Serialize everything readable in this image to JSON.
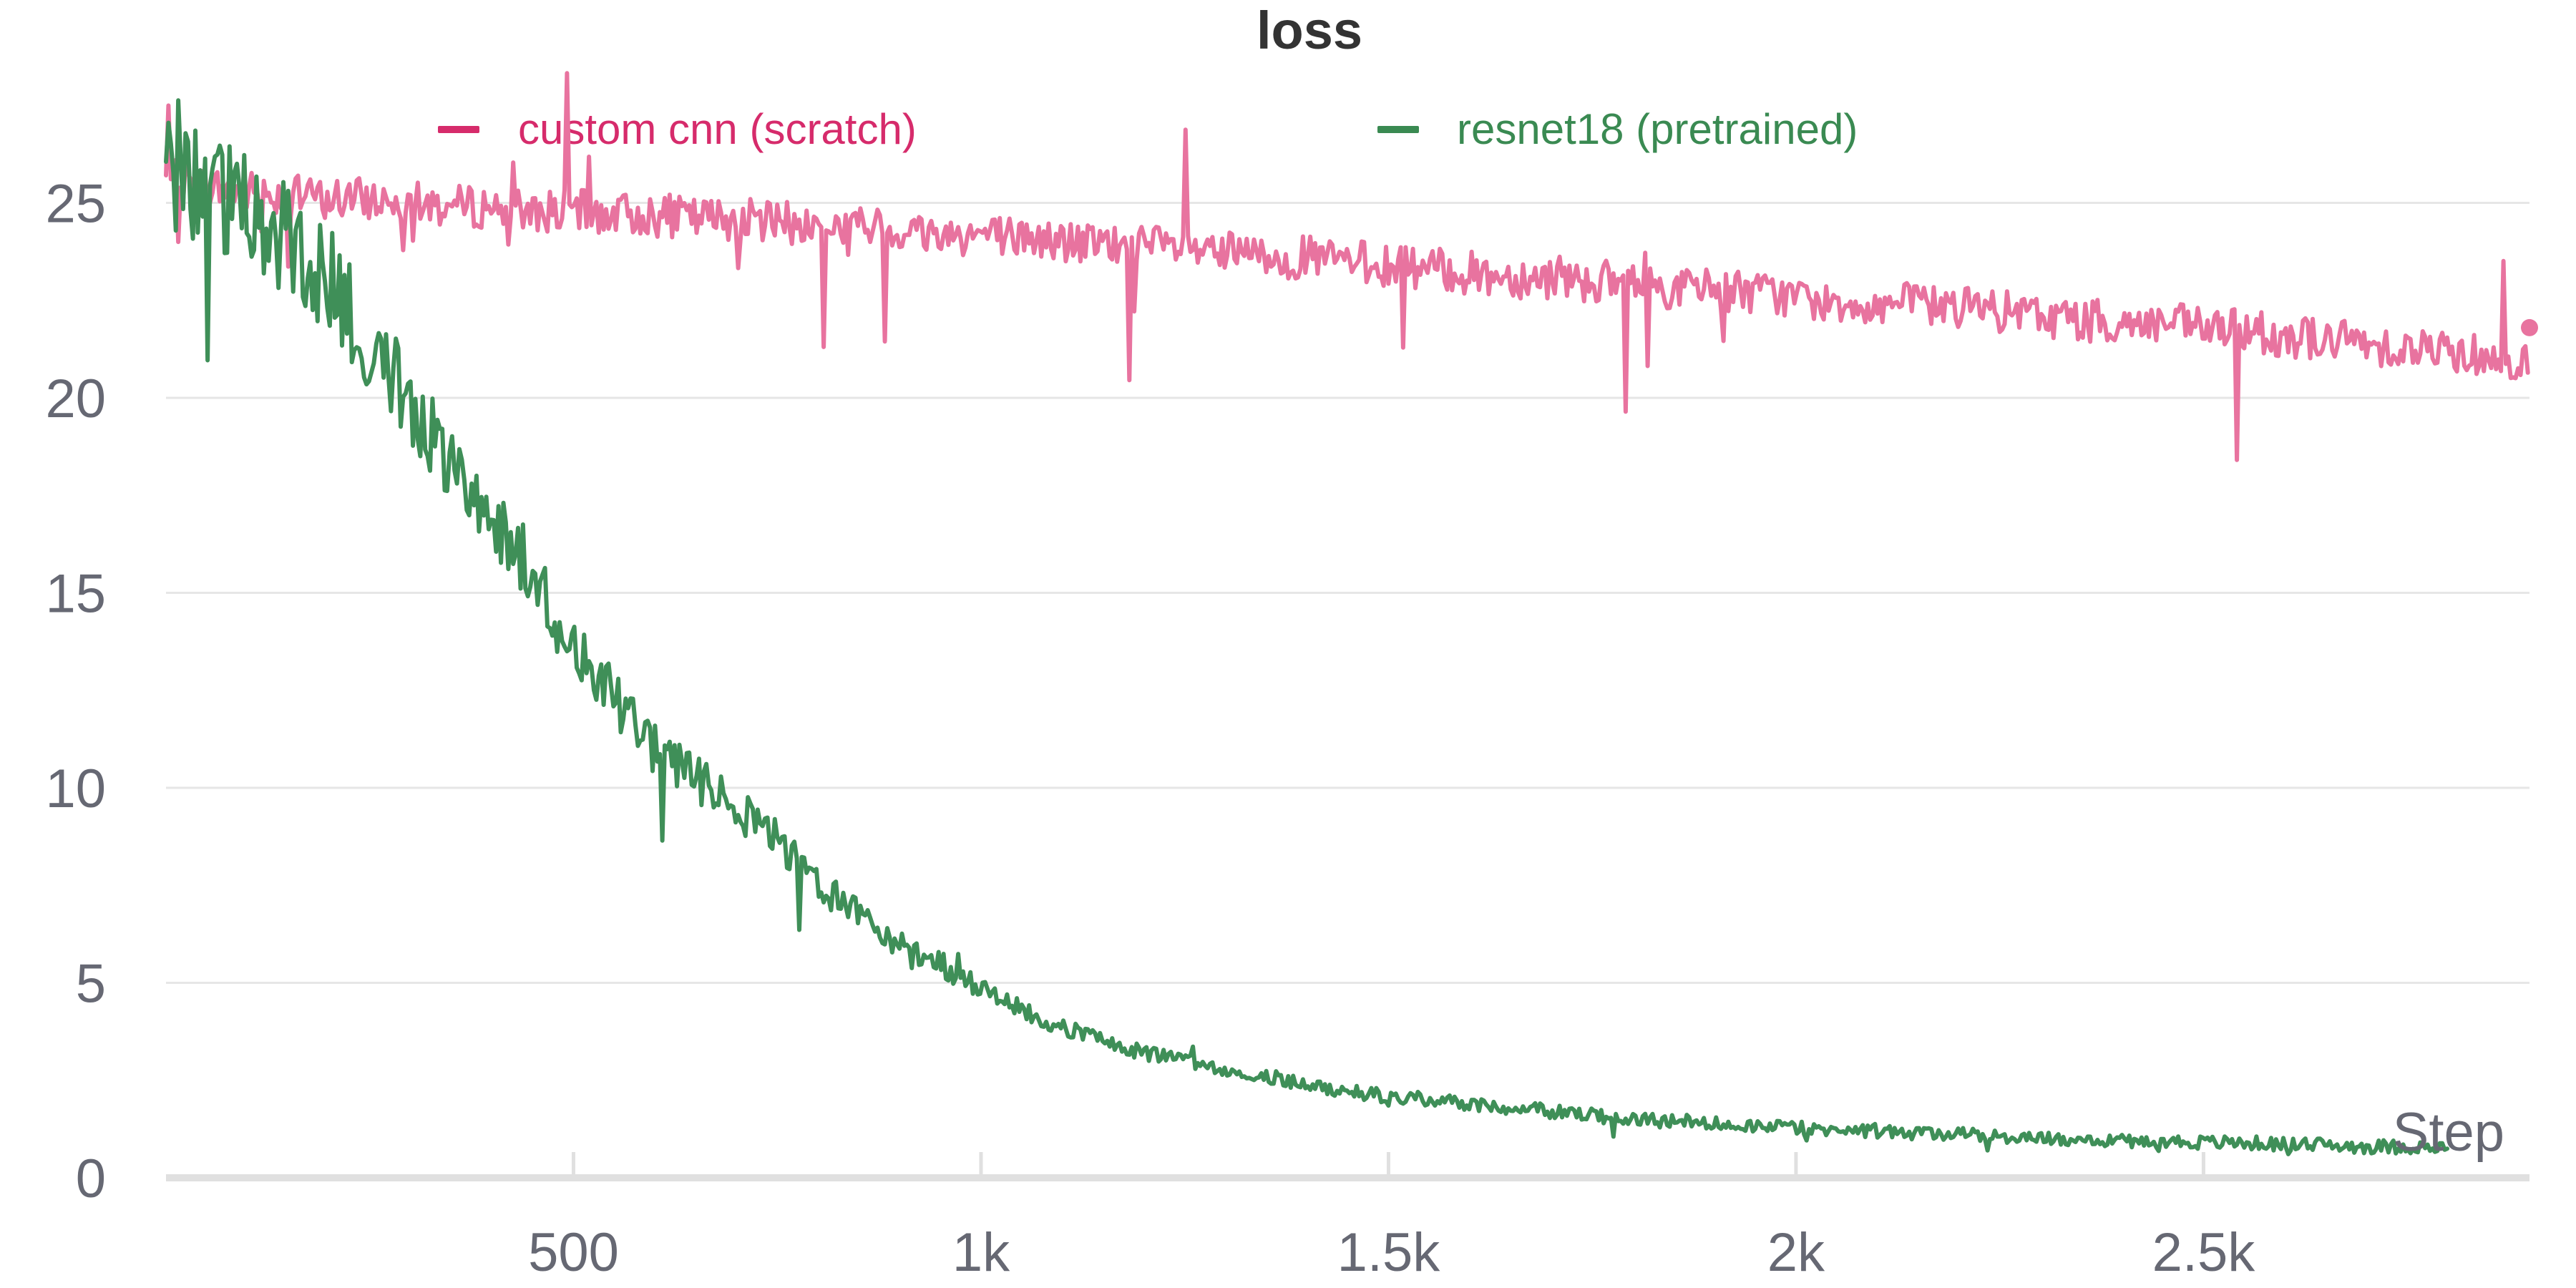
{
  "chart_data": {
    "type": "line",
    "title": "loss",
    "xlabel": "Step",
    "ylabel": "",
    "xlim": [
      0,
      2900
    ],
    "ylim": [
      0,
      28
    ],
    "x_ticks": [
      500,
      1000,
      1500,
      2000,
      2500
    ],
    "x_tick_labels": [
      "500",
      "1k",
      "1.5k",
      "2k",
      "2.5k"
    ],
    "y_ticks": [
      0,
      5,
      10,
      15,
      20,
      25
    ],
    "y_tick_labels": [
      "0",
      "5",
      "10",
      "15",
      "20",
      "25"
    ],
    "grid": true,
    "legend_position": "top",
    "series": [
      {
        "name": "custom cnn (scratch)",
        "color": "#e8739f",
        "legend_color": "#d62b6b",
        "x": [
          0,
          50,
          100,
          150,
          200,
          250,
          300,
          350,
          400,
          450,
          500,
          550,
          600,
          650,
          700,
          750,
          800,
          850,
          900,
          950,
          1000,
          1050,
          1100,
          1150,
          1200,
          1250,
          1300,
          1350,
          1400,
          1450,
          1500,
          1550,
          1600,
          1650,
          1700,
          1750,
          1800,
          1850,
          1900,
          1950,
          2000,
          2050,
          2100,
          2150,
          2200,
          2250,
          2300,
          2350,
          2400,
          2450,
          2500,
          2550,
          2600,
          2650,
          2700,
          2750,
          2800,
          2850,
          2900
        ],
        "y": [
          25.6,
          25.4,
          25.3,
          25.2,
          25.1,
          25.1,
          25.0,
          24.9,
          24.9,
          24.8,
          24.8,
          24.7,
          24.7,
          24.6,
          24.6,
          24.5,
          24.4,
          24.4,
          24.3,
          24.2,
          24.2,
          24.1,
          24.0,
          23.9,
          23.9,
          23.8,
          23.7,
          23.6,
          23.6,
          23.5,
          23.4,
          23.3,
          23.2,
          23.1,
          23.1,
          23.0,
          22.9,
          22.8,
          22.8,
          22.7,
          22.6,
          22.5,
          22.4,
          22.4,
          22.3,
          22.2,
          22.1,
          22.0,
          21.9,
          21.9,
          21.8,
          21.7,
          21.6,
          21.5,
          21.4,
          21.3,
          21.2,
          21.1,
          21.0
        ],
        "end_marker": true
      },
      {
        "name": "resnet18 (pretrained)",
        "color": "#3f8f58",
        "legend_color": "#3a8a52",
        "x": [
          0,
          50,
          100,
          150,
          200,
          250,
          300,
          350,
          400,
          450,
          500,
          550,
          600,
          650,
          700,
          750,
          800,
          850,
          900,
          950,
          1000,
          1050,
          1100,
          1150,
          1200,
          1250,
          1300,
          1350,
          1400,
          1450,
          1500,
          1550,
          1600,
          1650,
          1700,
          1750,
          1800,
          1850,
          1900,
          1950,
          2000,
          2050,
          2100,
          2150,
          2200,
          2250,
          2300,
          2350,
          2400,
          2450,
          2500,
          2550,
          2600,
          2650,
          2700,
          2750,
          2800
        ],
        "y": [
          25.8,
          25.3,
          25.0,
          24.0,
          23.0,
          21.5,
          20.0,
          18.5,
          17.0,
          15.5,
          13.5,
          12.3,
          11.0,
          10.2,
          9.5,
          8.7,
          7.5,
          6.8,
          6.0,
          5.5,
          4.8,
          4.3,
          3.9,
          3.5,
          3.2,
          3.0,
          2.8,
          2.6,
          2.4,
          2.2,
          2.1,
          2.0,
          1.9,
          1.8,
          1.7,
          1.6,
          1.5,
          1.45,
          1.4,
          1.35,
          1.3,
          1.25,
          1.2,
          1.15,
          1.1,
          1.05,
          1.0,
          1.0,
          0.95,
          0.95,
          0.9,
          0.9,
          0.85,
          0.85,
          0.8,
          0.8,
          0.75
        ]
      }
    ]
  }
}
